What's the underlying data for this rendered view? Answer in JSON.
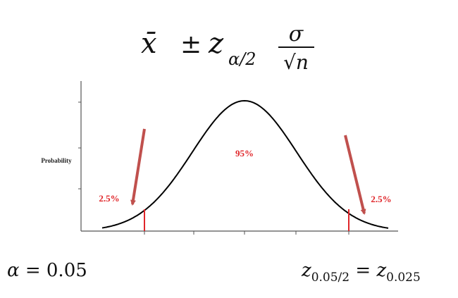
{
  "formula": {
    "mean": "x̄",
    "plus_minus": "±",
    "z": "z",
    "subscript": "α/2",
    "numerator": "σ",
    "denominator": "√n"
  },
  "y_axis_label": "Probability",
  "regions": {
    "center": "95%",
    "left_tail": "2.5%",
    "right_tail": "2.5%"
  },
  "alpha_equation": {
    "symbol": "α",
    "equals": "=",
    "value": "0.05"
  },
  "critical_value": {
    "z": "z",
    "subscript": "0.05/2",
    "equals": "=",
    "z2": "z",
    "subscript2": "0.025"
  }
}
